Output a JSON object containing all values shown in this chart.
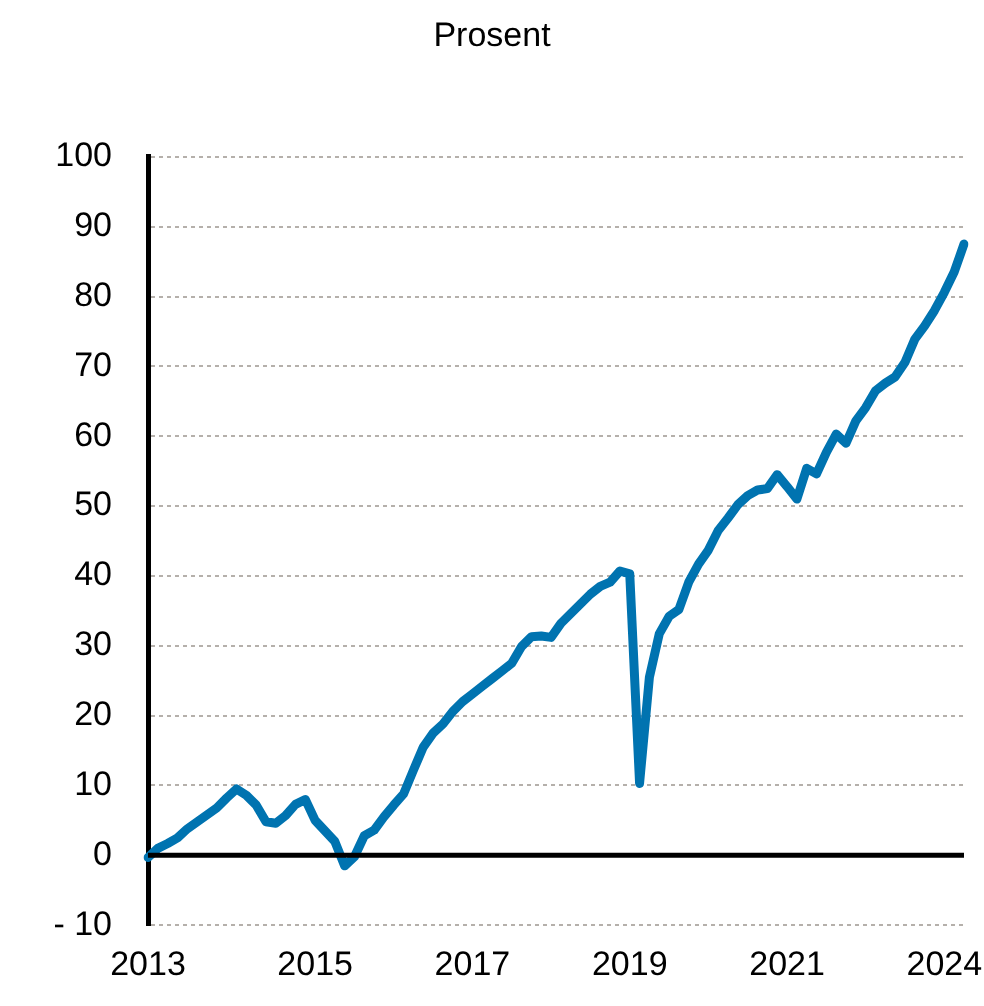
{
  "chart_data": {
    "type": "line",
    "title": "Prosent",
    "categories": [
      "2013",
      null,
      null,
      null,
      null,
      null,
      null,
      null,
      null,
      null,
      null,
      null,
      null,
      null,
      null,
      null,
      null,
      "2015",
      null,
      null,
      null,
      null,
      null,
      null,
      null,
      null,
      null,
      null,
      null,
      null,
      null,
      null,
      null,
      "2017",
      null,
      null,
      null,
      null,
      null,
      null,
      null,
      null,
      null,
      null,
      null,
      null,
      null,
      null,
      null,
      "2019",
      null,
      null,
      null,
      null,
      null,
      null,
      null,
      null,
      null,
      null,
      null,
      null,
      null,
      null,
      null,
      "2021",
      null,
      null,
      null,
      null,
      null,
      null,
      null,
      null,
      null,
      null,
      null,
      null,
      null,
      null,
      null,
      "2024",
      null,
      null
    ],
    "series": [
      {
        "color": "#0073b0",
        "values": [
          -0.3,
          1.0,
          1.7,
          2.5,
          3.8,
          4.8,
          5.8,
          6.8,
          8.2,
          9.5,
          8.6,
          7.2,
          4.8,
          4.6,
          5.7,
          7.3,
          8.0,
          5.0,
          3.5,
          2.0,
          -1.5,
          -0.2,
          2.8,
          3.6,
          5.5,
          7.2,
          8.8,
          12.2,
          15.5,
          17.5,
          18.8,
          20.6,
          22,
          23.1,
          24.2,
          25.3,
          26.4,
          27.5,
          29.9,
          31.3,
          31.4,
          31.2,
          33.2,
          34.6,
          36.0,
          37.4,
          38.5,
          39.1,
          40.7,
          40.3,
          10.3,
          25.5,
          31.7,
          34.2,
          35.2,
          39.1,
          41.7,
          43.7,
          46.5,
          48.3,
          50.2,
          51.5,
          52.3,
          52.5,
          54.5,
          52.8,
          51,
          55.4,
          54.6,
          57.7,
          60.3,
          59.0,
          62.2,
          64.1,
          66.5,
          67.6,
          68.5,
          70.6,
          73.9,
          75.8,
          78.0,
          80.6,
          83.5,
          87.5
        ]
      }
    ],
    "ylim": [
      -10,
      100
    ],
    "yticks": [
      {
        "value": -10,
        "label": "- 10"
      },
      0,
      10,
      20,
      30,
      40,
      50,
      60,
      70,
      80,
      90,
      100
    ],
    "grid": "y",
    "marker": "none",
    "line_style": "solid",
    "ref_lines": [
      {
        "axis": "y",
        "value": 0,
        "color": "#000000"
      }
    ]
  }
}
